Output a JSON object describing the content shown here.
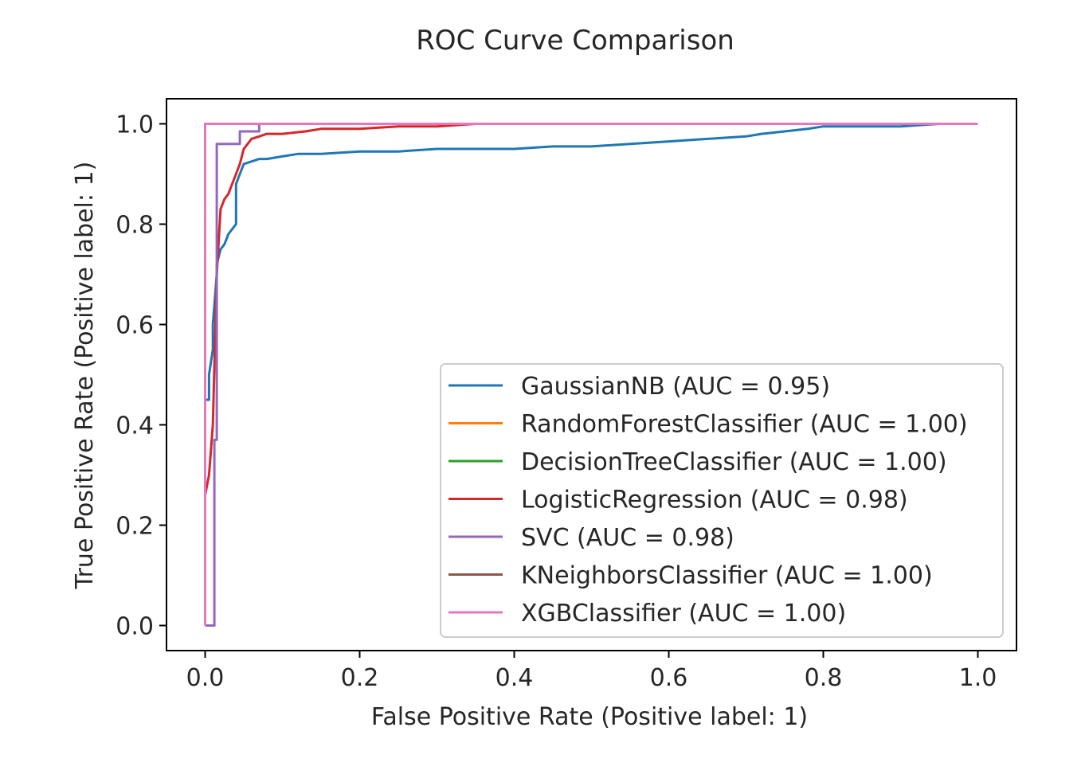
{
  "chart_data": {
    "type": "line",
    "title": "ROC Curve Comparison",
    "xlabel": "False Positive Rate (Positive label: 1)",
    "ylabel": "True Positive Rate (Positive label: 1)",
    "xlim": [
      -0.05,
      1.05
    ],
    "ylim": [
      -0.05,
      1.05
    ],
    "xticks": [
      "0.0",
      "0.2",
      "0.4",
      "0.6",
      "0.8",
      "1.0"
    ],
    "yticks": [
      "0.0",
      "0.2",
      "0.4",
      "0.6",
      "0.8",
      "1.0"
    ],
    "grid": false,
    "legend_position": "lower-right",
    "series": [
      {
        "name": "GaussianNB (AUC = 0.95)",
        "color": "#1f77b4",
        "x": [
          0,
          0,
          0.005,
          0.005,
          0.01,
          0.01,
          0.015,
          0.015,
          0.02,
          0.025,
          0.03,
          0.035,
          0.04,
          0.04,
          0.045,
          0.05,
          0.06,
          0.07,
          0.08,
          0.1,
          0.12,
          0.15,
          0.2,
          0.25,
          0.3,
          0.35,
          0.4,
          0.45,
          0.5,
          0.55,
          0.6,
          0.65,
          0.7,
          0.72,
          0.75,
          0.78,
          0.8,
          0.85,
          0.9,
          0.95
        ],
        "y": [
          0,
          0.45,
          0.45,
          0.5,
          0.55,
          0.6,
          0.7,
          0.72,
          0.75,
          0.76,
          0.78,
          0.79,
          0.8,
          0.88,
          0.9,
          0.92,
          0.925,
          0.93,
          0.93,
          0.935,
          0.94,
          0.94,
          0.945,
          0.945,
          0.95,
          0.95,
          0.95,
          0.955,
          0.955,
          0.96,
          0.965,
          0.97,
          0.975,
          0.98,
          0.985,
          0.99,
          0.995,
          0.995,
          0.995,
          1.0
        ]
      },
      {
        "name": "RandomForestClassifier (AUC = 1.00)",
        "color": "#ff7f0e",
        "x": [
          0,
          0,
          1
        ],
        "y": [
          0,
          1,
          1
        ]
      },
      {
        "name": "DecisionTreeClassifier (AUC = 1.00)",
        "color": "#2ca02c",
        "x": [
          0,
          0,
          1
        ],
        "y": [
          0,
          1,
          1
        ]
      },
      {
        "name": "LogisticRegression (AUC = 0.98)",
        "color": "#d62728",
        "x": [
          0,
          0,
          0.005,
          0.01,
          0.015,
          0.02,
          0.025,
          0.03,
          0.035,
          0.04,
          0.045,
          0.05,
          0.055,
          0.06,
          0.07,
          0.08,
          0.1,
          0.13,
          0.15,
          0.2,
          0.25,
          0.3,
          0.35,
          1
        ],
        "y": [
          0,
          0.26,
          0.3,
          0.4,
          0.7,
          0.83,
          0.85,
          0.86,
          0.88,
          0.9,
          0.92,
          0.95,
          0.96,
          0.97,
          0.975,
          0.98,
          0.98,
          0.985,
          0.99,
          0.99,
          0.995,
          0.995,
          1.0,
          1.0
        ]
      },
      {
        "name": "SVC (AUC = 0.98)",
        "color": "#9467bd",
        "x": [
          0,
          0.012,
          0.012,
          0.015,
          0.015,
          0.045,
          0.045,
          0.07,
          0.07,
          1
        ],
        "y": [
          0,
          0,
          0.37,
          0.37,
          0.96,
          0.96,
          0.985,
          0.985,
          1.0,
          1.0
        ]
      },
      {
        "name": "KNeighborsClassifier (AUC = 1.00)",
        "color": "#8c564b",
        "x": [
          0,
          0,
          1
        ],
        "y": [
          0,
          1,
          1
        ]
      },
      {
        "name": "XGBClassifier (AUC = 1.00)",
        "color": "#e377c2",
        "x": [
          0,
          0,
          1
        ],
        "y": [
          0,
          1,
          1
        ]
      }
    ]
  }
}
